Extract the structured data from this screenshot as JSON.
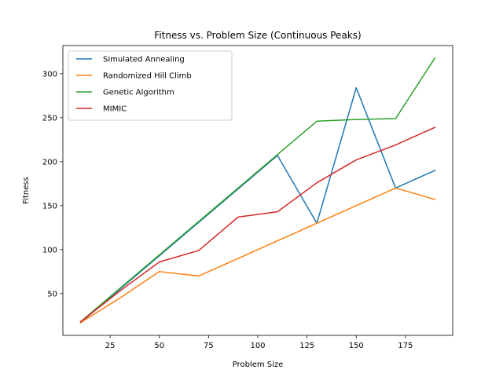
{
  "chart_data": {
    "type": "line",
    "title": "Fitness vs. Problem Size (Continuous Peaks)",
    "xlabel": "Problem Size",
    "ylabel": "Fitness",
    "xlim": [
      1,
      199
    ],
    "ylim": [
      2.5,
      332
    ],
    "xticks": [
      25,
      50,
      75,
      100,
      125,
      150,
      175
    ],
    "yticks": [
      50,
      100,
      150,
      200,
      250,
      300
    ],
    "grid": false,
    "legend_position": "top-left",
    "x": [
      10,
      30,
      50,
      70,
      90,
      110,
      130,
      150,
      170,
      190
    ],
    "series": [
      {
        "name": "Simulated Annealing",
        "color": "#1f77b4",
        "values": [
          17,
          55,
          93,
          131,
          169,
          207,
          130,
          284,
          170,
          190
        ]
      },
      {
        "name": "Randomized Hill Climb",
        "color": "#ff7f0e",
        "values": [
          17,
          45,
          75,
          70,
          90,
          110,
          130,
          150,
          170,
          157
        ]
      },
      {
        "name": "Genetic Algorithm",
        "color": "#2ca02c",
        "values": [
          18,
          56,
          94,
          132,
          170,
          208,
          246,
          248,
          249,
          318
        ]
      },
      {
        "name": "MIMIC",
        "color": "#d62728",
        "values": [
          18,
          53,
          86,
          99,
          137,
          143,
          176,
          202,
          219,
          239
        ]
      }
    ]
  }
}
